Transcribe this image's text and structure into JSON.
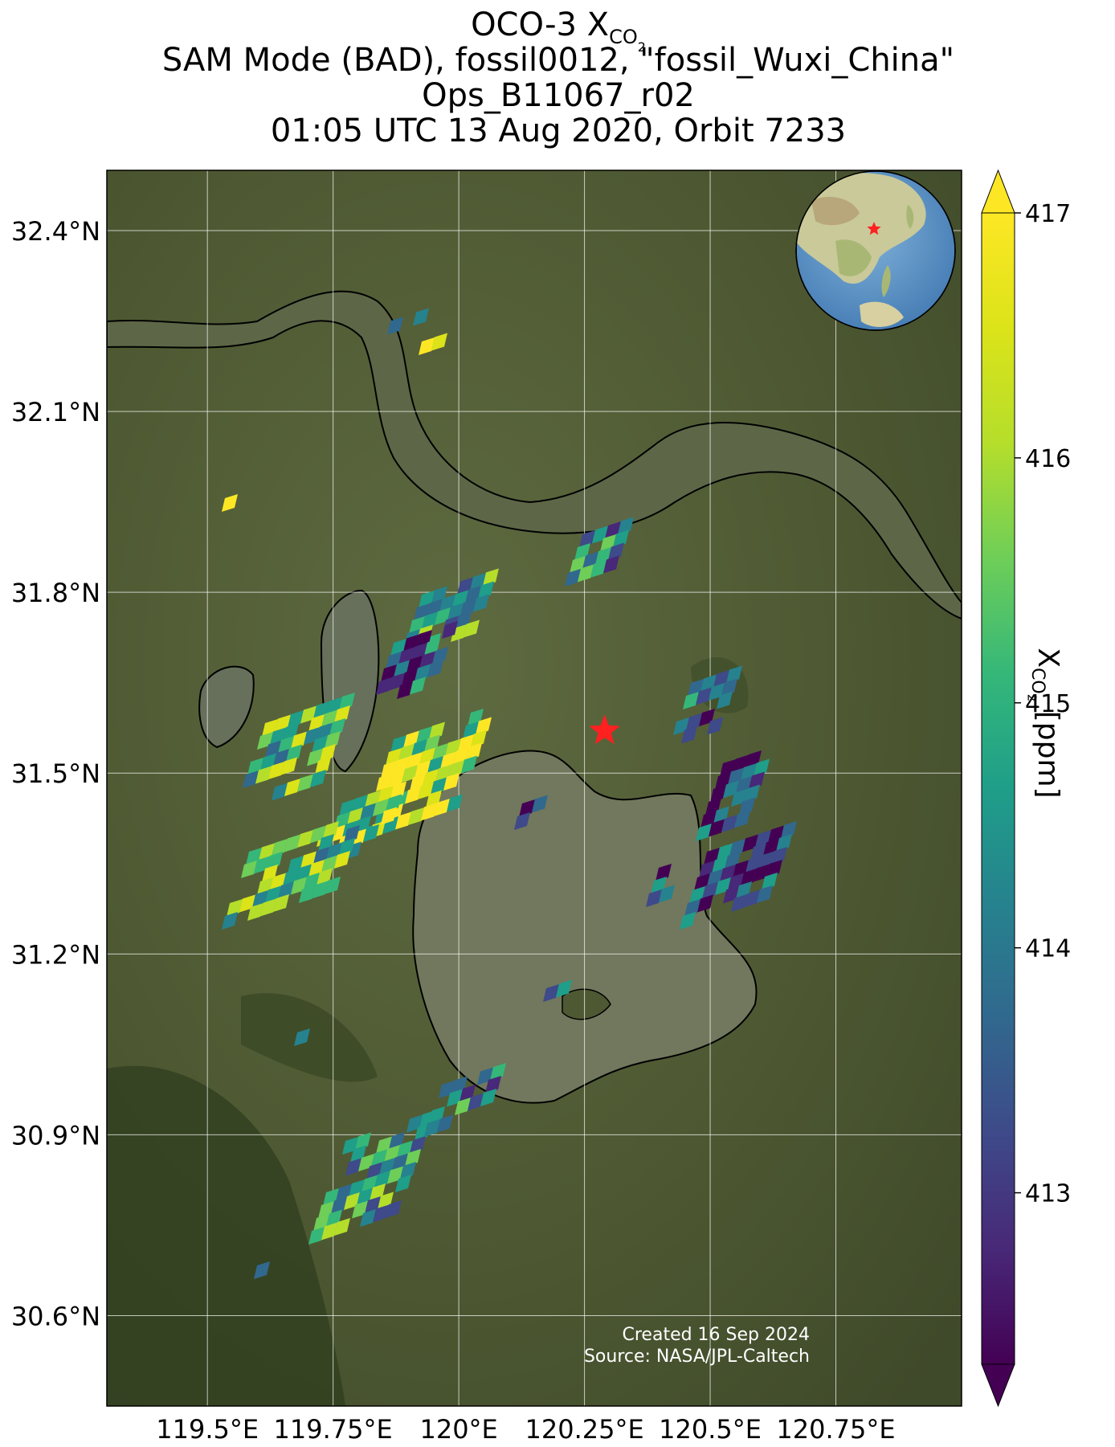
{
  "title": {
    "line1_prefix": "OCO-3 X",
    "line1_sub": "CO",
    "line1_sub2": "2",
    "line2": "SAM Mode (BAD), fossil0012, \"fossil_Wuxi_China\"",
    "line3": "Ops_B11067_r02",
    "line4": "01:05 UTC 13 Aug 2020, Orbit 7233"
  },
  "credit": {
    "line1": "Created 16 Sep 2024",
    "line2": "Source: NASA/JPL-Caltech"
  },
  "colorbar": {
    "label_prefix": "X",
    "label_sub": "CO",
    "label_sub2": "2",
    "label_suffix": " [ppm]",
    "ticks": [
      "413",
      "414",
      "415",
      "416",
      "417"
    ],
    "range": [
      412.3,
      417
    ],
    "colormap": "viridis",
    "extend": "both"
  },
  "map": {
    "lon_ticks": [
      "119.5°E",
      "119.75°E",
      "120°E",
      "120.25°E",
      "120.5°E",
      "120.75°E"
    ],
    "lat_ticks": [
      "32.4°N",
      "32.1°N",
      "31.8°N",
      "31.5°N",
      "31.2°N",
      "30.9°N",
      "30.6°N"
    ],
    "lon_range": [
      119.3,
      121.0
    ],
    "lat_range": [
      30.45,
      32.5
    ],
    "target_marker": {
      "lon": 120.29,
      "lat": 31.57,
      "color": "#ff2020"
    },
    "colors": {
      "grid": "#ffffff",
      "coastline": "#000000",
      "land": "#4f5a33",
      "water": "#6d7359"
    }
  }
}
